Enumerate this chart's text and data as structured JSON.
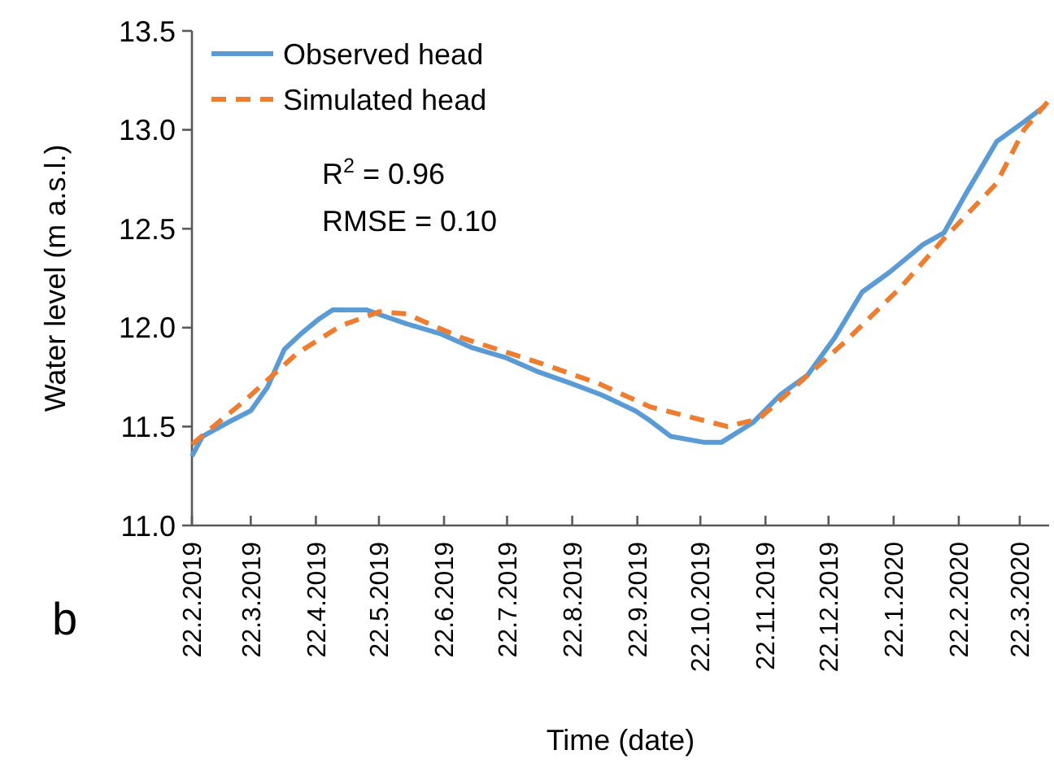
{
  "chart_data": {
    "type": "line",
    "xlabel": "Time (date)",
    "ylabel": "Water level (m a.s.l.)",
    "xlim": [
      "2019-02-22",
      "2020-04-05"
    ],
    "ylim": [
      11.0,
      13.5
    ],
    "yticks": [
      {
        "value": 11.0,
        "label": "11.0"
      },
      {
        "value": 11.5,
        "label": "11.5"
      },
      {
        "value": 12.0,
        "label": "12.0"
      },
      {
        "value": 12.5,
        "label": "12.5"
      },
      {
        "value": 13.0,
        "label": "13.0"
      },
      {
        "value": 13.5,
        "label": "13.5"
      }
    ],
    "xticks": [
      {
        "value": "2019-02-22",
        "label": "22.2.2019"
      },
      {
        "value": "2019-03-22",
        "label": "22.3.2019"
      },
      {
        "value": "2019-04-22",
        "label": "22.4.2019"
      },
      {
        "value": "2019-05-22",
        "label": "22.5.2019"
      },
      {
        "value": "2019-06-22",
        "label": "22.6.2019"
      },
      {
        "value": "2019-07-22",
        "label": "22.7.2019"
      },
      {
        "value": "2019-08-22",
        "label": "22.8.2019"
      },
      {
        "value": "2019-09-22",
        "label": "22.9.2019"
      },
      {
        "value": "2019-10-22",
        "label": "22.10.2019"
      },
      {
        "value": "2019-11-22",
        "label": "22.11.2019"
      },
      {
        "value": "2019-12-22",
        "label": "22.12.2019"
      },
      {
        "value": "2020-01-22",
        "label": "22.1.2020"
      },
      {
        "value": "2020-02-22",
        "label": "22.2.2020"
      },
      {
        "value": "2020-03-22",
        "label": "22.3.2020"
      }
    ],
    "grid": false,
    "legend": "top left",
    "marker": "none",
    "annotations": [
      "R$^{2}$ = 0.96",
      "RMSE = 0.10",
      "b"
    ],
    "series": [
      {
        "name": "Observed head",
        "color": "#5b9bd5",
        "line_style": "solid",
        "x": [
          "2019-02-22",
          "2019-02-27",
          "2019-03-11",
          "2019-03-22",
          "2019-03-30",
          "2019-04-07",
          "2019-04-15",
          "2019-04-23",
          "2019-04-30",
          "2019-05-08",
          "2019-05-16",
          "2019-05-24",
          "2019-06-04",
          "2019-06-20",
          "2019-07-05",
          "2019-07-21",
          "2019-08-05",
          "2019-08-21",
          "2019-09-05",
          "2019-09-21",
          "2019-09-28",
          "2019-10-08",
          "2019-10-24",
          "2019-11-01",
          "2019-11-16",
          "2019-11-29",
          "2019-12-12",
          "2019-12-25",
          "2020-01-07",
          "2020-01-20",
          "2020-02-05",
          "2020-02-15",
          "2020-02-25",
          "2020-03-11",
          "2020-03-24",
          "2020-04-03"
        ],
        "values": [
          11.35,
          11.45,
          11.52,
          11.58,
          11.7,
          11.89,
          11.97,
          12.04,
          12.09,
          12.09,
          12.09,
          12.06,
          12.02,
          11.97,
          11.9,
          11.85,
          11.78,
          11.72,
          11.66,
          11.58,
          11.53,
          11.45,
          11.42,
          11.42,
          11.52,
          11.66,
          11.76,
          11.95,
          12.18,
          12.28,
          12.42,
          12.48,
          12.67,
          12.94,
          13.04,
          13.12
        ]
      },
      {
        "name": "Simulated head",
        "color": "#ed7d31",
        "line_style": "dashed",
        "x": [
          "2019-02-22",
          "2019-03-19",
          "2019-04-13",
          "2019-05-04",
          "2019-05-22",
          "2019-06-04",
          "2019-06-30",
          "2019-08-07",
          "2019-09-03",
          "2019-09-28",
          "2019-11-04",
          "2019-11-19",
          "2019-12-07",
          "2019-12-30",
          "2020-01-25",
          "2020-02-15",
          "2020-03-11",
          "2020-03-24",
          "2020-04-05"
        ],
        "values": [
          11.41,
          11.63,
          11.87,
          12.01,
          12.08,
          12.07,
          11.95,
          11.82,
          11.72,
          11.6,
          11.5,
          11.54,
          11.71,
          11.93,
          12.2,
          12.45,
          12.73,
          13.0,
          13.15
        ]
      }
    ]
  }
}
